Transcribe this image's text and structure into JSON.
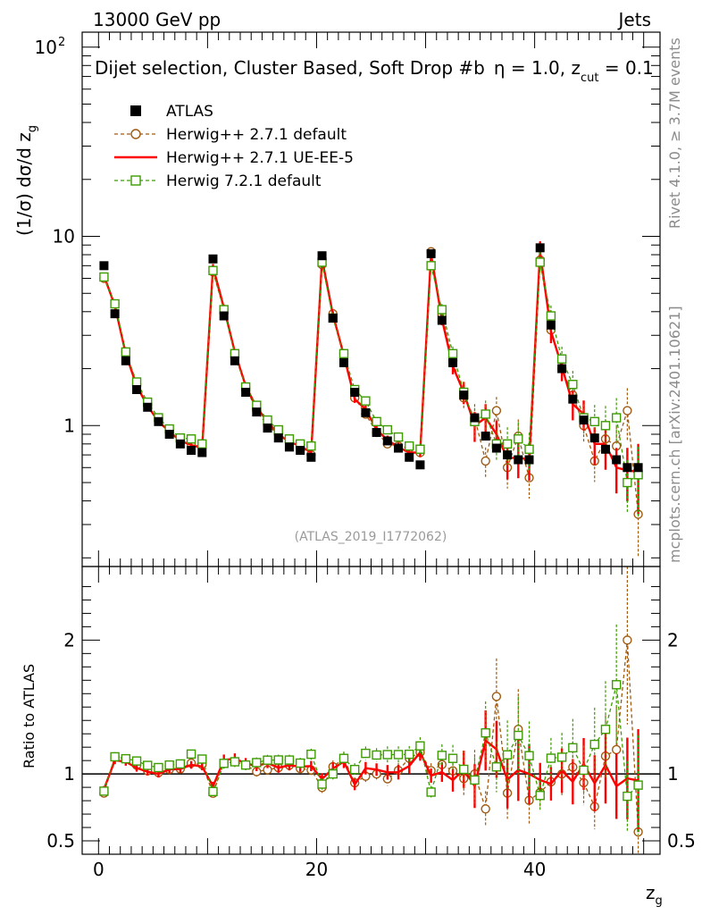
{
  "header": {
    "energy_label": "13000 GeV pp",
    "category_label": "Jets"
  },
  "plot_title": {
    "main": "Dijet selection, Cluster Based, Soft Drop #b",
    "eta": "η = 1.0, z",
    "sub": "cut",
    "end": " = 0.1"
  },
  "y_axis_label": {
    "prefix": "(1/σ) dσ/d z",
    "sub": "g"
  },
  "x_axis_label": {
    "main": "z",
    "sub": "g"
  },
  "ratio_axis_label": "Ratio to ATLAS",
  "analysis_id": "(ATLAS_2019_I1772062)",
  "side_labels": {
    "rivet": "Rivet 4.1.0, ≥ 3.7M events",
    "site": "mcplots.cern.ch [arXiv:2401.10621]"
  },
  "main_y_ticks": [
    {
      "value": 1,
      "label": "1"
    },
    {
      "value": 10,
      "label": "10"
    }
  ],
  "main_y_exp_tick": {
    "base": "10",
    "exp": "2"
  },
  "ratio_ticks": [
    {
      "value": 0.5,
      "label": "0.5"
    },
    {
      "value": 1,
      "label": "1"
    },
    {
      "value": 2,
      "label": "2"
    }
  ],
  "x_ticks": [
    {
      "value": 0,
      "label": "0"
    },
    {
      "value": 20,
      "label": "20"
    },
    {
      "value": 40,
      "label": "40"
    }
  ],
  "legend": [
    {
      "label": "ATLAS",
      "color": "#000000",
      "style": "data"
    },
    {
      "label": "Herwig++ 2.7.1 default",
      "color": "#a05a10",
      "style": "circle"
    },
    {
      "label": "Herwig++ 2.7.1 UE-EE-5",
      "color": "#ff0000",
      "style": "line"
    },
    {
      "label": "Herwig 7.2.1 default",
      "color": "#3c9c00",
      "style": "square"
    }
  ],
  "chart_data": {
    "type": "scatter",
    "title": "Dijet selection, Cluster Based, Soft Drop #b η = 1.0, z_cut = 0.1",
    "xlabel": "z_g",
    "ylabel": "(1/σ) dσ/d z_g",
    "ratio_ylabel": "Ratio to ATLAS",
    "xlim": [
      -1.5,
      51.5
    ],
    "ylim": [
      0.18,
      120
    ],
    "ratio_ylim": [
      0.4,
      2.55
    ],
    "yscale": "log",
    "x": [
      0.5,
      1.5,
      2.5,
      3.5,
      4.5,
      5.5,
      6.5,
      7.5,
      8.5,
      9.5,
      10.5,
      11.5,
      12.5,
      13.5,
      14.5,
      15.5,
      16.5,
      17.5,
      18.5,
      19.5,
      20.5,
      21.5,
      22.5,
      23.5,
      24.5,
      25.5,
      26.5,
      27.5,
      28.5,
      29.5,
      30.5,
      31.5,
      32.5,
      33.5,
      34.5,
      35.5,
      36.5,
      37.5,
      38.5,
      39.5,
      40.5,
      41.5,
      42.5,
      43.5,
      44.5,
      45.5,
      46.5,
      47.5,
      48.5,
      49.5
    ],
    "atlas": [
      7.0,
      3.9,
      2.2,
      1.55,
      1.25,
      1.05,
      0.9,
      0.8,
      0.74,
      0.72,
      7.6,
      3.8,
      2.2,
      1.5,
      1.18,
      0.97,
      0.86,
      0.77,
      0.74,
      0.68,
      7.9,
      3.7,
      2.15,
      1.5,
      1.17,
      0.92,
      0.83,
      0.76,
      0.68,
      0.62,
      8.1,
      3.6,
      2.15,
      1.45,
      1.1,
      0.88,
      0.76,
      0.7,
      0.66,
      0.66,
      8.7,
      3.4,
      2.0,
      1.38,
      1.07,
      0.86,
      0.75,
      0.66,
      0.6,
      0.6
    ],
    "series": [
      {
        "name": "Herwig++ 2.7.1 default",
        "color": "#a05a10",
        "marker": "circle",
        "dashed": true,
        "values": [
          6.0,
          4.4,
          2.45,
          1.65,
          1.28,
          1.06,
          0.93,
          0.83,
          0.8,
          0.77,
          6.5,
          4.1,
          2.4,
          1.6,
          1.2,
          1.0,
          0.9,
          0.82,
          0.77,
          0.7,
          7.1,
          3.9,
          2.4,
          1.4,
          1.15,
          0.92,
          0.8,
          0.78,
          0.76,
          0.72,
          8.3,
          3.85,
          2.2,
          1.4,
          1.1,
          0.65,
          1.2,
          0.6,
          0.88,
          0.53,
          7.5,
          3.2,
          2.0,
          1.45,
          1.0,
          0.65,
          0.85,
          0.78,
          1.2,
          0.34
        ]
      },
      {
        "name": "Herwig++ 2.7.1 UE-EE-5",
        "color": "#ff0000",
        "marker": "none",
        "dashed": false,
        "values": [
          6.2,
          4.3,
          2.4,
          1.62,
          1.27,
          1.05,
          0.93,
          0.83,
          0.79,
          0.76,
          6.9,
          4.2,
          2.45,
          1.62,
          1.25,
          1.05,
          0.9,
          0.82,
          0.78,
          0.72,
          7.6,
          3.85,
          2.35,
          1.38,
          1.22,
          0.95,
          0.84,
          0.77,
          0.72,
          0.72,
          8.0,
          3.65,
          2.05,
          1.5,
          1.0,
          1.1,
          0.9,
          0.67,
          0.68,
          0.66,
          8.3,
          3.15,
          2.05,
          1.3,
          1.15,
          0.8,
          0.8,
          0.6,
          0.58,
          0.57
        ]
      },
      {
        "name": "Herwig 7.2.1 default",
        "color": "#3c9c00",
        "marker": "square",
        "dashed": true,
        "values": [
          6.1,
          4.4,
          2.45,
          1.7,
          1.33,
          1.1,
          0.96,
          0.86,
          0.85,
          0.8,
          6.6,
          4.1,
          2.4,
          1.6,
          1.28,
          1.07,
          0.95,
          0.85,
          0.8,
          0.78,
          7.3,
          3.7,
          2.4,
          1.55,
          1.35,
          1.05,
          0.95,
          0.87,
          0.78,
          0.75,
          7.0,
          4.1,
          2.4,
          1.5,
          1.05,
          1.15,
          0.8,
          0.8,
          0.85,
          0.75,
          7.3,
          3.8,
          2.25,
          1.65,
          1.1,
          1.05,
          1.0,
          1.1,
          0.5,
          0.55
        ]
      }
    ],
    "rel_errors": [
      0.03,
      0.03,
      0.03,
      0.03,
      0.03,
      0.03,
      0.03,
      0.03,
      0.03,
      0.03,
      0.04,
      0.04,
      0.04,
      0.04,
      0.04,
      0.04,
      0.04,
      0.04,
      0.04,
      0.04,
      0.05,
      0.05,
      0.05,
      0.05,
      0.05,
      0.05,
      0.06,
      0.06,
      0.06,
      0.06,
      0.06,
      0.08,
      0.1,
      0.15,
      0.2,
      0.2,
      0.2,
      0.25,
      0.25,
      0.25,
      0.15,
      0.15,
      0.18,
      0.2,
      0.2,
      0.25,
      0.3,
      0.3,
      0.35,
      0.45
    ]
  }
}
